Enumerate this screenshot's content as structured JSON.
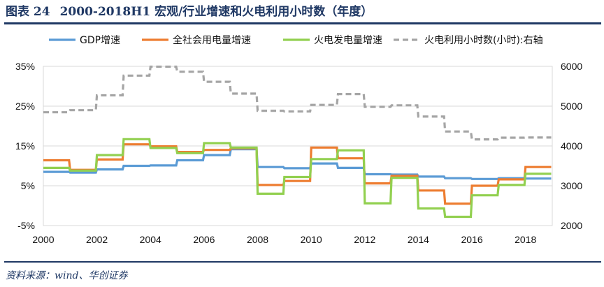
{
  "header": {
    "figure_no": "图表 24",
    "title": "2000-2018H1 宏观/行业增速和火电利用小时数（年度）"
  },
  "footer": {
    "source": "资料来源：wind、华创证券"
  },
  "chart_data": {
    "type": "line",
    "step": true,
    "x": [
      2000,
      2001,
      2002,
      2003,
      2004,
      2005,
      2006,
      2007,
      2008,
      2009,
      2010,
      2011,
      2012,
      2013,
      2014,
      2015,
      2016,
      2017,
      2018
    ],
    "xlim": [
      2000,
      2019
    ],
    "xticks": [
      2000,
      2002,
      2004,
      2006,
      2008,
      2010,
      2012,
      2014,
      2016,
      2018
    ],
    "ylim": [
      -5,
      35
    ],
    "yticks_left": [
      "35%",
      "25%",
      "15%",
      "5%",
      "-5%"
    ],
    "yticks_left_values": [
      35,
      25,
      15,
      5,
      -5
    ],
    "ylim_right": [
      2000,
      6000
    ],
    "yticks_right": [
      6000,
      5000,
      4000,
      3000,
      2000
    ],
    "legend_position": "top",
    "series": [
      {
        "name": "GDP增速",
        "axis": "left",
        "color": "#5b9bd5",
        "dash": false,
        "values": [
          8.5,
          8.3,
          9.1,
          10.0,
          10.1,
          11.4,
          12.7,
          14.2,
          9.7,
          9.4,
          10.6,
          9.5,
          7.9,
          7.8,
          7.3,
          6.9,
          6.7,
          6.9,
          6.8
        ]
      },
      {
        "name": "全社会用电量增速",
        "axis": "left",
        "color": "#ed7d31",
        "dash": false,
        "values": [
          11.4,
          9.0,
          11.6,
          15.4,
          14.9,
          13.5,
          14.0,
          14.4,
          5.2,
          6.2,
          14.6,
          11.9,
          5.6,
          7.5,
          3.8,
          0.5,
          5.0,
          6.6,
          9.7
        ]
      },
      {
        "name": "火电发电量增速",
        "axis": "left",
        "color": "#92d050",
        "dash": false,
        "values": [
          9.5,
          8.8,
          12.7,
          16.7,
          14.5,
          13.2,
          15.7,
          14.6,
          3.0,
          7.2,
          11.7,
          13.9,
          0.6,
          7.0,
          -0.7,
          -2.8,
          2.6,
          5.2,
          8.0
        ]
      },
      {
        "name": "火电利用小时数(小时):右轴",
        "axis": "right",
        "color": "#a5a5a5",
        "dash": true,
        "values": [
          4848,
          4900,
          5272,
          5767,
          5991,
          5865,
          5612,
          5316,
          4885,
          4865,
          5031,
          5305,
          4982,
          5021,
          4739,
          4364,
          4165,
          4209,
          4212
        ]
      }
    ]
  }
}
